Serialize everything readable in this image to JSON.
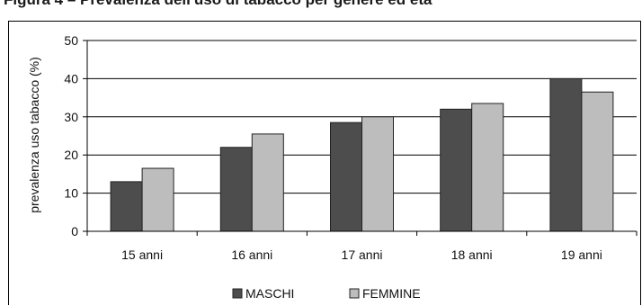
{
  "caption": "Figura 4 – Prevalenza dell'uso di tabacco per genere ed età",
  "chart_data": {
    "type": "bar",
    "categories": [
      "15 anni",
      "16 anni",
      "17 anni",
      "18 anni",
      "19 anni"
    ],
    "series": [
      {
        "name": "MASCHI",
        "values": [
          13,
          22,
          28.5,
          32,
          40
        ],
        "color": "#4d4d4d"
      },
      {
        "name": "FEMMINE",
        "values": [
          16.5,
          25.5,
          30,
          33.5,
          36.5
        ],
        "color": "#bdbdbd"
      }
    ],
    "title": "",
    "xlabel": "",
    "ylabel": "prevalenza uso tabacco (%)",
    "ylim": [
      0,
      50
    ],
    "yticks": [
      0,
      10,
      20,
      30,
      40,
      50
    ],
    "grid": true,
    "legend": "bottom"
  }
}
